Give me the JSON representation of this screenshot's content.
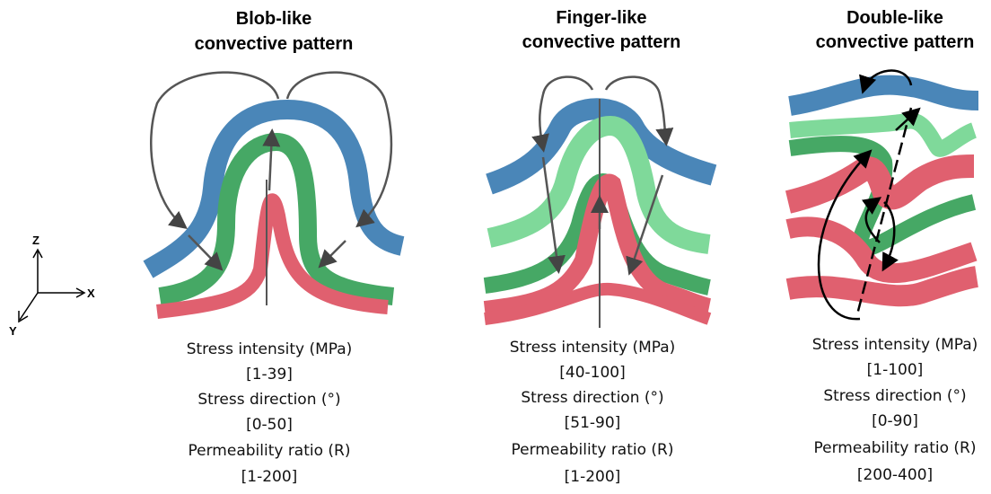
{
  "axes": {
    "z": "Z",
    "x": "X",
    "y": "Y"
  },
  "panels": [
    {
      "title": [
        "Blob-like",
        "convective pattern"
      ],
      "captions": [
        "Stress intensity (MPa)",
        "[1-39]",
        "Stress direction (°)",
        "[0-50]",
        "Permeability ratio (R)",
        "[1-200]"
      ]
    },
    {
      "title": [
        "Finger-like",
        "convective pattern"
      ],
      "captions": [
        "Stress intensity (MPa)",
        "[40-100]",
        "Stress direction (°)",
        "[51-90]",
        "Permeability ratio (R)",
        "[1-200]"
      ]
    },
    {
      "title": [
        "Double-like",
        "convective pattern"
      ],
      "captions": [
        "Stress intensity (MPa)",
        "[1-100]",
        "Stress direction (°)",
        "[0-90]",
        "Permeability ratio (R)",
        "[200-400]"
      ]
    }
  ]
}
